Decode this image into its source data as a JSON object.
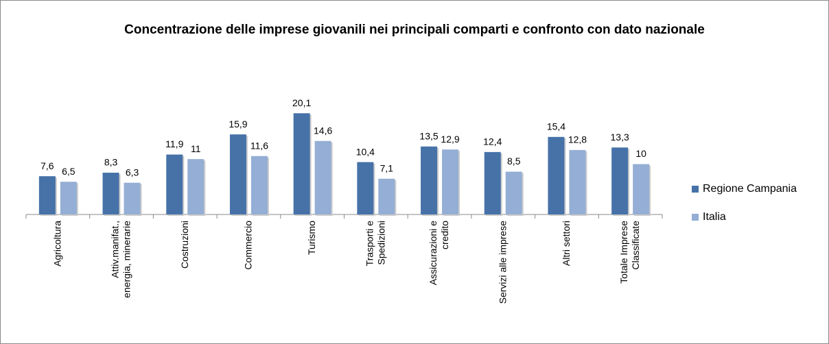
{
  "chart_data": {
    "type": "bar",
    "title": "Concentrazione delle imprese giovanili nei principali comparti e confronto con dato nazionale",
    "categories": [
      "Agricoltura",
      "Attiv.manifat.,\nenergia, minerarie",
      "Costruzioni",
      "Commercio",
      "Turismo",
      "Trasporti e\nSpedizioni",
      "Assicurazioni e\ncredito",
      "Servizi alle imprese",
      "Altri settori",
      "Totale Imprese\nClassificate"
    ],
    "series": [
      {
        "name": "Regione Campania",
        "color": "#4672a8",
        "values": [
          7.6,
          8.3,
          11.9,
          15.9,
          20.1,
          10.4,
          13.5,
          12.4,
          15.4,
          13.3
        ],
        "value_labels": [
          "7,6",
          "8,3",
          "11,9",
          "15,9",
          "20,1",
          "10,4",
          "13,5",
          "12,4",
          "15,4",
          "13,3"
        ]
      },
      {
        "name": "Italia",
        "color": "#94aed5",
        "values": [
          6.5,
          6.3,
          11,
          11.6,
          14.6,
          7.1,
          12.9,
          8.5,
          12.8,
          10
        ],
        "value_labels": [
          "6,5",
          "6,3",
          "11",
          "11,6",
          "14,6",
          "7,1",
          "12,9",
          "8,5",
          "12,8",
          "10"
        ]
      }
    ],
    "legend": "right"
  }
}
